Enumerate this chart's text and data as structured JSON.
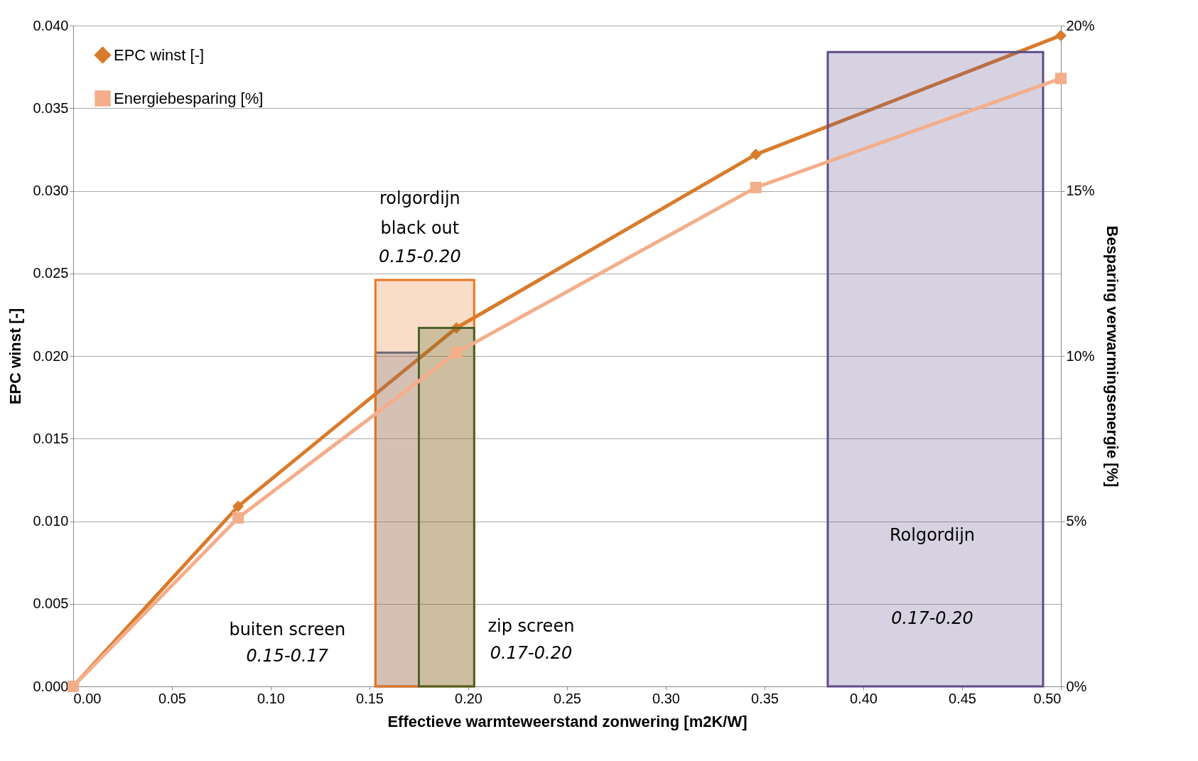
{
  "chart_data": {
    "type": "line",
    "xlabel": "Effectieve warmteweerstand zonwering [m2K/W]",
    "ylabel": "EPC winst [-]",
    "y2label": "Besparing verwarmingsenergie [%]",
    "xlim": [
      0,
      0.5
    ],
    "xticks": [
      {
        "value": 0,
        "label": "0.00"
      },
      0.05,
      {
        "value": 0.1,
        "label": "0.10"
      },
      0.15,
      {
        "value": 0.2,
        "label": "0.20"
      },
      0.25,
      {
        "value": 0.3,
        "label": "0.30"
      },
      0.35,
      {
        "value": 0.4,
        "label": "0.40"
      },
      0.45,
      {
        "value": 0.5,
        "label": "0.50"
      }
    ],
    "ylim": [
      0,
      0.04
    ],
    "yticks": [
      {
        "value": 0,
        "label": "0.000"
      },
      0.005,
      {
        "value": 0.01,
        "label": "0.010"
      },
      0.015,
      {
        "value": 0.02,
        "label": "0.020"
      },
      0.025,
      {
        "value": 0.03,
        "label": "0.030"
      },
      0.035,
      {
        "value": 0.04,
        "label": "0.040"
      }
    ],
    "y2lim": [
      0,
      20
    ],
    "y2ticks": [
      {
        "value": 0,
        "label": "0%"
      },
      {
        "value": 5,
        "label": "5%"
      },
      {
        "value": 10,
        "label": "10%"
      },
      {
        "value": 15,
        "label": "15%"
      },
      {
        "value": 20,
        "label": "20%"
      }
    ],
    "grid": "y",
    "legend": "top left",
    "line_style": "solid",
    "series": [
      {
        "name": "EPC winst [-]",
        "marker": "diamond",
        "color": "#d97b2b",
        "x": [
          0,
          0.0835,
          0.194,
          0.3456,
          0.5
        ],
        "values": [
          0,
          0.0109,
          0.0217,
          0.0322,
          0.0394
        ]
      },
      {
        "name": "Energiebesparing [%]",
        "marker": "square",
        "axis": "y2",
        "color": "#f4ae8a",
        "x": [
          0,
          0.0835,
          0.194,
          0.3456,
          0.5
        ],
        "values": [
          0,
          5.1,
          10.1,
          15.1,
          18.4
        ]
      },
      {
        "type": "area",
        "color": "#44638f",
        "x": [
          0.153,
          0.175
        ],
        "values": [
          0.0202,
          0.0202
        ]
      },
      {
        "type": "area",
        "color": "#e87722",
        "x": [
          0.153,
          0.203
        ],
        "values": [
          0.0246,
          0.0246
        ]
      },
      {
        "type": "area",
        "color": "#4f6228",
        "x": [
          0.175,
          0.203
        ],
        "values": [
          0.0217,
          0.0217
        ]
      },
      {
        "type": "area",
        "color": "#5f4b8b",
        "x": [
          0.382,
          0.491
        ],
        "values": [
          0.0384,
          0.0384
        ]
      }
    ],
    "annotations": [
      "rolgordijn",
      "black out",
      "0.15-0.20",
      "buiten screen",
      "0.15-0.17",
      "zip screen",
      "0.17-0.20",
      "Rolgordijn",
      "0.17-0.20"
    ]
  }
}
